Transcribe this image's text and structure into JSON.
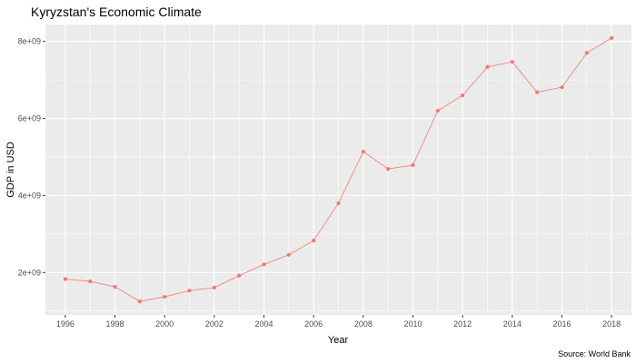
{
  "chart_data": {
    "type": "line",
    "title": "Kyryzstan's Economic Climate",
    "xlabel": "Year",
    "ylabel": "GDP in USD",
    "caption": "Source: World Bank",
    "x": [
      1996,
      1997,
      1998,
      1999,
      2000,
      2001,
      2002,
      2003,
      2004,
      2005,
      2006,
      2007,
      2008,
      2009,
      2010,
      2011,
      2012,
      2013,
      2014,
      2015,
      2016,
      2017,
      2018
    ],
    "series": [
      {
        "values": [
          1830000000,
          1770000000,
          1630000000,
          1250000000,
          1370000000,
          1530000000,
          1610000000,
          1920000000,
          2210000000,
          2460000000,
          2830000000,
          3800000000,
          5140000000,
          4690000000,
          4790000000,
          6200000000,
          6600000000,
          7340000000,
          7470000000,
          6680000000,
          6810000000,
          7700000000,
          8090000000
        ],
        "color": "#f8766d"
      }
    ],
    "xticks": [
      1996,
      1998,
      2000,
      2002,
      2004,
      2006,
      2008,
      2010,
      2012,
      2014,
      2016,
      2018
    ],
    "xtick_labels": [
      "1996",
      "1998",
      "2000",
      "2002",
      "2004",
      "2006",
      "2008",
      "2010",
      "2012",
      "2014",
      "2016",
      "2018"
    ],
    "yticks": [
      2000000000,
      4000000000,
      6000000000,
      8000000000
    ],
    "ytick_labels": [
      "2e+09",
      "4e+09",
      "6e+09",
      "8e+09"
    ],
    "xlim": [
      1995.2,
      2018.8
    ],
    "ylim": [
      900000000,
      8440000000
    ],
    "grid": true,
    "panel_color": "#ebebeb",
    "grid_color": "#ffffff"
  }
}
